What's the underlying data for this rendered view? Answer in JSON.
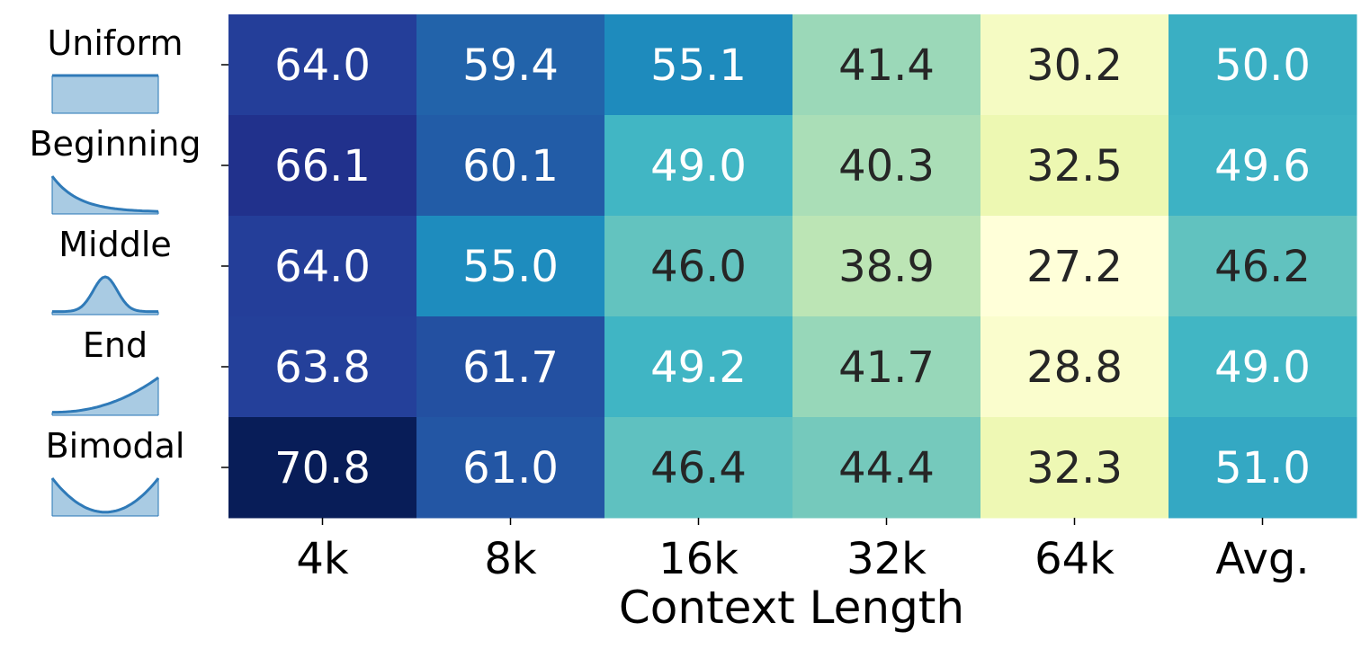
{
  "chart_data": {
    "type": "heatmap",
    "title": "",
    "xlabel": "Context Length",
    "ylabel": "",
    "columns": [
      "4k",
      "8k",
      "16k",
      "32k",
      "64k",
      "Avg."
    ],
    "rows": [
      {
        "label": "Uniform",
        "distribution_icon": "uniform-distribution-icon",
        "values": [
          64.0,
          59.4,
          55.1,
          41.4,
          30.2,
          50.0
        ]
      },
      {
        "label": "Beginning",
        "distribution_icon": "beginning-distribution-icon",
        "values": [
          66.1,
          60.1,
          49.0,
          40.3,
          32.5,
          49.6
        ]
      },
      {
        "label": "Middle",
        "distribution_icon": "middle-distribution-icon",
        "values": [
          64.0,
          55.0,
          46.0,
          38.9,
          27.2,
          46.2
        ]
      },
      {
        "label": "End",
        "distribution_icon": "end-distribution-icon",
        "values": [
          63.8,
          61.7,
          49.2,
          41.7,
          28.8,
          49.0
        ]
      },
      {
        "label": "Bimodal",
        "distribution_icon": "bimodal-distribution-icon",
        "values": [
          70.8,
          61.0,
          46.4,
          44.4,
          32.3,
          51.0
        ]
      }
    ],
    "value_range": [
      27.2,
      70.8
    ],
    "colormap": "YlGnBu",
    "grid": false,
    "legend": "none",
    "colors": {
      "icon_fill": "#a9cbe3",
      "icon_stroke": "#2f7ab8",
      "light_text": "#ffffff",
      "dark_text": "#262626"
    }
  }
}
